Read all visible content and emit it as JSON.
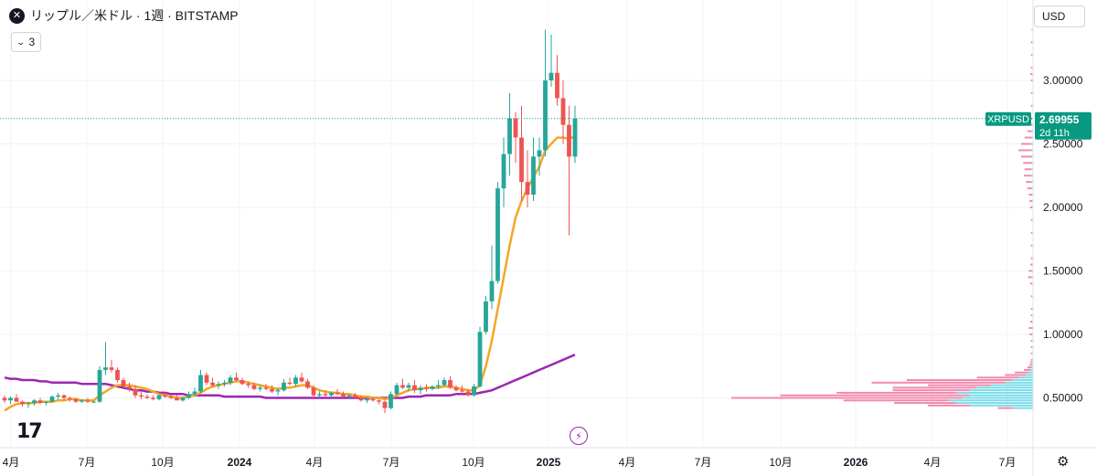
{
  "header": {
    "symbol_icon": "x-circle-icon",
    "symbol_glyph": "✕",
    "title": "リップル／米ドル · 1週 · BITSTAMP",
    "indicator_count": "3",
    "currency": "USD"
  },
  "colors": {
    "up": "#26a69a",
    "down": "#ef5350",
    "ma_fast": "#f5a623",
    "ma_slow": "#9c27b0",
    "price_tag": "#089981",
    "grid": "#f0f3fa",
    "text": "#131722"
  },
  "price_label": {
    "ticker": "XRPUSD",
    "price": "2.69955",
    "countdown": "2d 11h"
  },
  "chart_data": {
    "type": "candlestick",
    "title": "リップル／米ドル · 1週 · BITSTAMP",
    "ylim": [
      0.35,
      3.45
    ],
    "y_ticks": [
      "3.00000",
      "2.50000",
      "2.00000",
      "1.50000",
      "1.00000",
      "0.50000"
    ],
    "x_tick_labels": [
      "4月",
      "7月",
      "10月",
      "2024",
      "4月",
      "7月",
      "10月",
      "2025",
      "4月",
      "7月",
      "10月",
      "2026",
      "4月",
      "7月"
    ],
    "last_price": 2.69955,
    "candles": [
      [
        0.5,
        0.52,
        0.46,
        0.48
      ],
      [
        0.48,
        0.51,
        0.45,
        0.5
      ],
      [
        0.5,
        0.53,
        0.47,
        0.47
      ],
      [
        0.47,
        0.48,
        0.43,
        0.45
      ],
      [
        0.45,
        0.47,
        0.42,
        0.46
      ],
      [
        0.46,
        0.49,
        0.44,
        0.48
      ],
      [
        0.48,
        0.5,
        0.45,
        0.46
      ],
      [
        0.46,
        0.47,
        0.44,
        0.47
      ],
      [
        0.47,
        0.52,
        0.46,
        0.51
      ],
      [
        0.51,
        0.54,
        0.49,
        0.52
      ],
      [
        0.52,
        0.53,
        0.48,
        0.5
      ],
      [
        0.5,
        0.51,
        0.47,
        0.49
      ],
      [
        0.49,
        0.5,
        0.46,
        0.47
      ],
      [
        0.47,
        0.49,
        0.46,
        0.48
      ],
      [
        0.48,
        0.5,
        0.46,
        0.47
      ],
      [
        0.47,
        0.48,
        0.46,
        0.47
      ],
      [
        0.47,
        0.75,
        0.46,
        0.72
      ],
      [
        0.72,
        0.94,
        0.68,
        0.74
      ],
      [
        0.74,
        0.8,
        0.7,
        0.72
      ],
      [
        0.72,
        0.74,
        0.62,
        0.64
      ],
      [
        0.64,
        0.66,
        0.58,
        0.59
      ],
      [
        0.59,
        0.62,
        0.55,
        0.57
      ],
      [
        0.57,
        0.6,
        0.5,
        0.52
      ],
      [
        0.52,
        0.55,
        0.49,
        0.51
      ],
      [
        0.51,
        0.53,
        0.49,
        0.5
      ],
      [
        0.5,
        0.52,
        0.48,
        0.49
      ],
      [
        0.49,
        0.53,
        0.48,
        0.52
      ],
      [
        0.52,
        0.55,
        0.5,
        0.51
      ],
      [
        0.51,
        0.52,
        0.49,
        0.5
      ],
      [
        0.5,
        0.52,
        0.48,
        0.48
      ],
      [
        0.48,
        0.51,
        0.47,
        0.5
      ],
      [
        0.5,
        0.55,
        0.49,
        0.53
      ],
      [
        0.53,
        0.58,
        0.51,
        0.55
      ],
      [
        0.55,
        0.72,
        0.54,
        0.68
      ],
      [
        0.68,
        0.7,
        0.6,
        0.62
      ],
      [
        0.62,
        0.66,
        0.58,
        0.6
      ],
      [
        0.6,
        0.63,
        0.57,
        0.61
      ],
      [
        0.61,
        0.64,
        0.59,
        0.62
      ],
      [
        0.62,
        0.68,
        0.6,
        0.66
      ],
      [
        0.66,
        0.7,
        0.63,
        0.64
      ],
      [
        0.64,
        0.66,
        0.6,
        0.61
      ],
      [
        0.61,
        0.63,
        0.58,
        0.6
      ],
      [
        0.6,
        0.62,
        0.56,
        0.57
      ],
      [
        0.57,
        0.6,
        0.55,
        0.58
      ],
      [
        0.58,
        0.61,
        0.56,
        0.57
      ],
      [
        0.57,
        0.6,
        0.54,
        0.55
      ],
      [
        0.55,
        0.58,
        0.52,
        0.56
      ],
      [
        0.56,
        0.65,
        0.55,
        0.62
      ],
      [
        0.62,
        0.66,
        0.6,
        0.61
      ],
      [
        0.61,
        0.68,
        0.59,
        0.66
      ],
      [
        0.66,
        0.7,
        0.62,
        0.63
      ],
      [
        0.63,
        0.65,
        0.57,
        0.58
      ],
      [
        0.58,
        0.6,
        0.49,
        0.52
      ],
      [
        0.52,
        0.55,
        0.5,
        0.53
      ],
      [
        0.53,
        0.56,
        0.51,
        0.52
      ],
      [
        0.52,
        0.55,
        0.5,
        0.54
      ],
      [
        0.54,
        0.57,
        0.52,
        0.53
      ],
      [
        0.53,
        0.55,
        0.5,
        0.51
      ],
      [
        0.51,
        0.53,
        0.49,
        0.52
      ],
      [
        0.52,
        0.54,
        0.5,
        0.5
      ],
      [
        0.5,
        0.52,
        0.47,
        0.48
      ],
      [
        0.48,
        0.5,
        0.46,
        0.49
      ],
      [
        0.49,
        0.51,
        0.47,
        0.48
      ],
      [
        0.48,
        0.49,
        0.45,
        0.47
      ],
      [
        0.47,
        0.48,
        0.38,
        0.42
      ],
      [
        0.42,
        0.55,
        0.41,
        0.53
      ],
      [
        0.53,
        0.62,
        0.52,
        0.6
      ],
      [
        0.6,
        0.65,
        0.57,
        0.58
      ],
      [
        0.58,
        0.62,
        0.55,
        0.6
      ],
      [
        0.6,
        0.64,
        0.54,
        0.56
      ],
      [
        0.56,
        0.6,
        0.53,
        0.58
      ],
      [
        0.58,
        0.61,
        0.55,
        0.57
      ],
      [
        0.57,
        0.6,
        0.56,
        0.59
      ],
      [
        0.59,
        0.64,
        0.57,
        0.6
      ],
      [
        0.6,
        0.66,
        0.59,
        0.64
      ],
      [
        0.64,
        0.67,
        0.57,
        0.58
      ],
      [
        0.58,
        0.6,
        0.55,
        0.56
      ],
      [
        0.56,
        0.6,
        0.53,
        0.55
      ],
      [
        0.55,
        0.57,
        0.51,
        0.52
      ],
      [
        0.52,
        0.61,
        0.51,
        0.59
      ],
      [
        0.59,
        1.06,
        0.58,
        1.02
      ],
      [
        1.02,
        1.3,
        1.0,
        1.26
      ],
      [
        1.26,
        1.7,
        1.2,
        1.42
      ],
      [
        1.42,
        2.2,
        1.4,
        2.15
      ],
      [
        2.15,
        2.55,
        2.0,
        2.42
      ],
      [
        2.42,
        2.9,
        2.25,
        2.7
      ],
      [
        2.7,
        2.75,
        2.35,
        2.55
      ],
      [
        2.55,
        2.8,
        2.05,
        2.2
      ],
      [
        2.2,
        2.45,
        2.0,
        2.1
      ],
      [
        2.1,
        2.55,
        2.05,
        2.4
      ],
      [
        2.4,
        2.55,
        2.25,
        2.45
      ],
      [
        2.45,
        3.4,
        2.4,
        3.0
      ],
      [
        3.0,
        3.36,
        2.95,
        3.06
      ],
      [
        3.06,
        3.2,
        2.8,
        2.86
      ],
      [
        2.86,
        3.0,
        2.5,
        2.65
      ],
      [
        2.65,
        2.8,
        1.78,
        2.4
      ],
      [
        2.4,
        2.8,
        2.35,
        2.7
      ]
    ],
    "series": [
      {
        "values": [
          0.4,
          0.43,
          0.45,
          0.46,
          0.46,
          0.46,
          0.47,
          0.47,
          0.47,
          0.48,
          0.48,
          0.49,
          0.49,
          0.48,
          0.48,
          0.48,
          0.52,
          0.55,
          0.58,
          0.6,
          0.6,
          0.6,
          0.59,
          0.58,
          0.57,
          0.55,
          0.53,
          0.52,
          0.51,
          0.5,
          0.5,
          0.51,
          0.52,
          0.54,
          0.57,
          0.59,
          0.6,
          0.61,
          0.62,
          0.63,
          0.63,
          0.62,
          0.61,
          0.6,
          0.59,
          0.58,
          0.57,
          0.58,
          0.58,
          0.59,
          0.6,
          0.6,
          0.58,
          0.56,
          0.55,
          0.54,
          0.54,
          0.53,
          0.53,
          0.52,
          0.51,
          0.51,
          0.5,
          0.5,
          0.49,
          0.5,
          0.52,
          0.54,
          0.56,
          0.57,
          0.57,
          0.58,
          0.58,
          0.58,
          0.59,
          0.59,
          0.58,
          0.57,
          0.56,
          0.56,
          0.6,
          0.75,
          0.95,
          1.2,
          1.45,
          1.7,
          1.92,
          2.05,
          2.15,
          2.24,
          2.32,
          2.45,
          2.5,
          2.55,
          2.55,
          2.54,
          2.56
        ]
      },
      {
        "values": [
          0.66,
          0.65,
          0.65,
          0.64,
          0.64,
          0.64,
          0.63,
          0.63,
          0.62,
          0.62,
          0.62,
          0.62,
          0.62,
          0.61,
          0.61,
          0.61,
          0.61,
          0.61,
          0.6,
          0.59,
          0.58,
          0.57,
          0.56,
          0.56,
          0.55,
          0.55,
          0.54,
          0.54,
          0.53,
          0.53,
          0.53,
          0.52,
          0.52,
          0.52,
          0.52,
          0.52,
          0.52,
          0.51,
          0.51,
          0.51,
          0.51,
          0.51,
          0.51,
          0.51,
          0.5,
          0.5,
          0.5,
          0.5,
          0.5,
          0.5,
          0.5,
          0.5,
          0.5,
          0.5,
          0.5,
          0.5,
          0.5,
          0.5,
          0.5,
          0.5,
          0.5,
          0.5,
          0.5,
          0.5,
          0.5,
          0.5,
          0.5,
          0.5,
          0.51,
          0.51,
          0.51,
          0.52,
          0.52,
          0.52,
          0.52,
          0.52,
          0.53,
          0.53,
          0.53,
          0.53,
          0.54,
          0.55,
          0.56,
          0.58,
          0.6,
          0.62,
          0.64,
          0.66,
          0.68,
          0.7,
          0.72,
          0.74,
          0.76,
          0.78,
          0.8,
          0.82,
          0.84
        ]
      }
    ],
    "volume_profile": {
      "price_bins": [
        0.42,
        0.44,
        0.46,
        0.48,
        0.5,
        0.52,
        0.54,
        0.56,
        0.58,
        0.6,
        0.62,
        0.64,
        0.66,
        0.68,
        0.7,
        0.72,
        0.74,
        0.76,
        0.78,
        0.8,
        0.85,
        0.9,
        0.95,
        1.0,
        1.05,
        1.1,
        1.15,
        1.2,
        1.3,
        1.4,
        1.45,
        1.5,
        1.55,
        1.6,
        1.7,
        1.8,
        1.9,
        2.0,
        2.05,
        2.1,
        2.15,
        2.2,
        2.25,
        2.3,
        2.35,
        2.4,
        2.45,
        2.5,
        2.55,
        2.6,
        2.65,
        2.7,
        2.8,
        2.9,
        3.0,
        3.05,
        3.1,
        3.2,
        3.3,
        3.4
      ],
      "down": [
        22,
        60,
        88,
        150,
        330,
        270,
        170,
        110,
        120,
        90,
        190,
        150,
        60,
        30,
        20,
        10,
        6,
        3,
        3,
        2,
        2,
        2,
        2,
        3,
        4,
        3,
        2,
        2,
        2,
        3,
        5,
        4,
        3,
        2,
        2,
        2,
        2,
        3,
        4,
        5,
        6,
        8,
        10,
        9,
        12,
        15,
        18,
        14,
        10,
        6,
        4,
        3,
        2,
        2,
        2,
        3,
        2,
        2,
        2,
        1
      ],
      "up": [
        28,
        90,
        110,
        120,
        100,
        90,
        110,
        90,
        80,
        60,
        40,
        30,
        20,
        10,
        6,
        3,
        2,
        2,
        1,
        1,
        1,
        1,
        1,
        2,
        2,
        1,
        1,
        1,
        1,
        1,
        2,
        2,
        1,
        1,
        1,
        1,
        1,
        1,
        1,
        1,
        2,
        2,
        3,
        3,
        2,
        2,
        3,
        3,
        2,
        2,
        1,
        1,
        1,
        1,
        1,
        1,
        1,
        1,
        1,
        1
      ]
    }
  }
}
